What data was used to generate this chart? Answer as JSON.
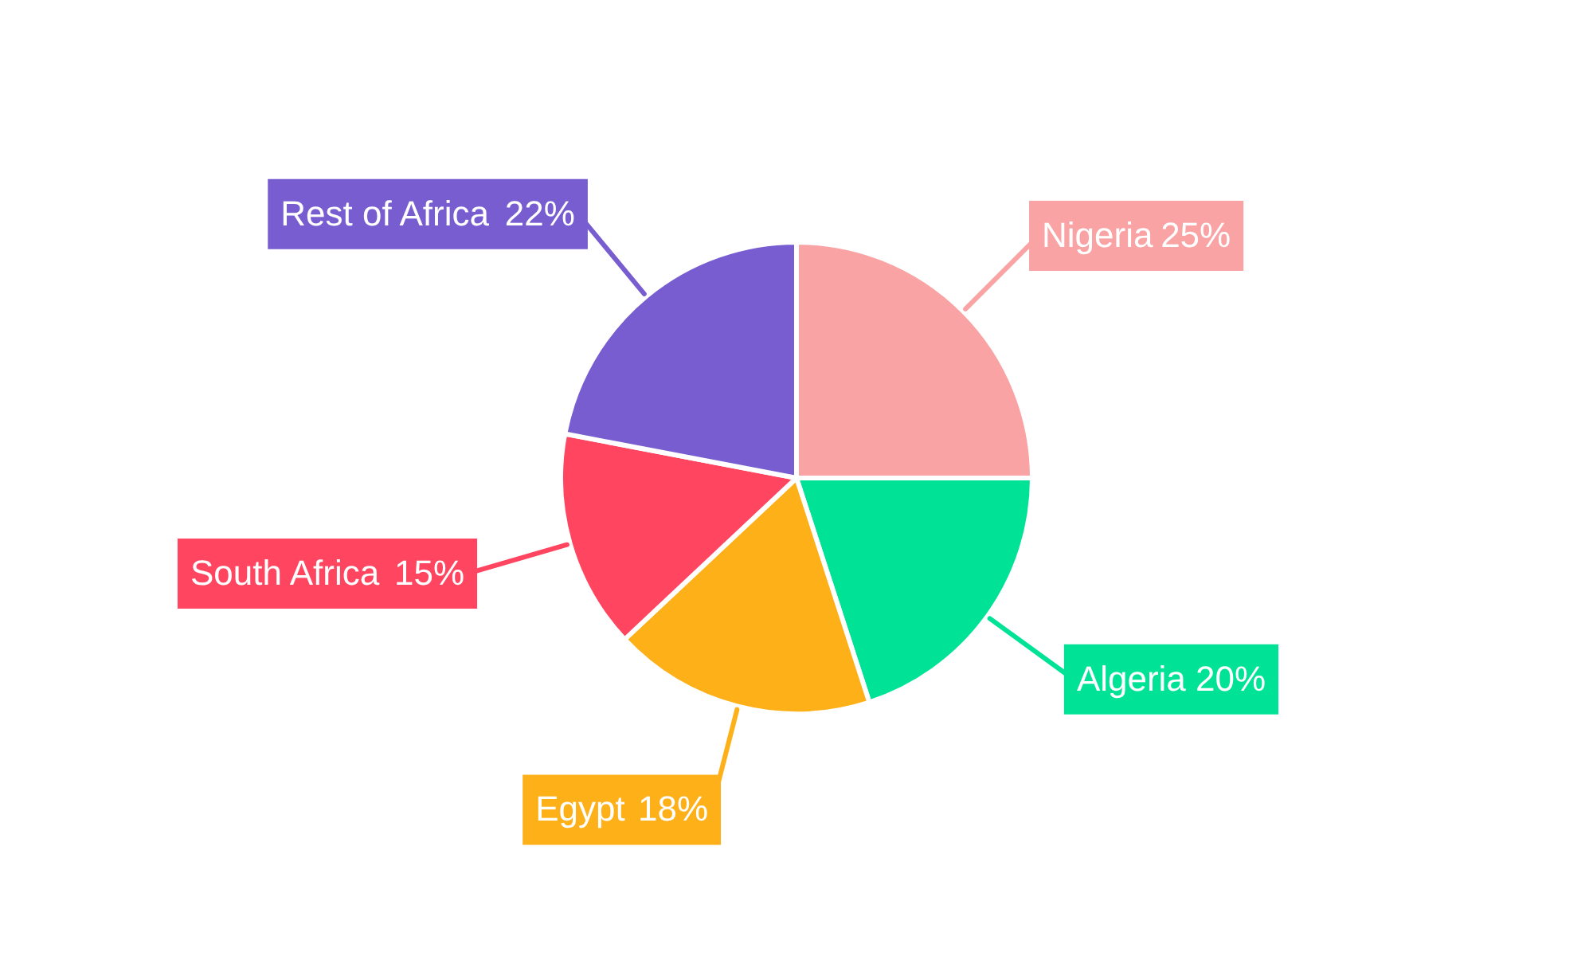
{
  "chart_data": {
    "type": "pie",
    "categories": [
      "Nigeria",
      "Algeria",
      "Egypt",
      "South Africa",
      "Rest of Africa"
    ],
    "values": [
      25,
      20,
      18,
      15,
      22
    ],
    "colors": [
      "#f9a3a4",
      "#00e396",
      "#feb019",
      "#ff4560",
      "#775dd0"
    ],
    "value_labels": [
      "25%",
      "20%",
      "18%",
      "15%",
      "22%"
    ]
  }
}
